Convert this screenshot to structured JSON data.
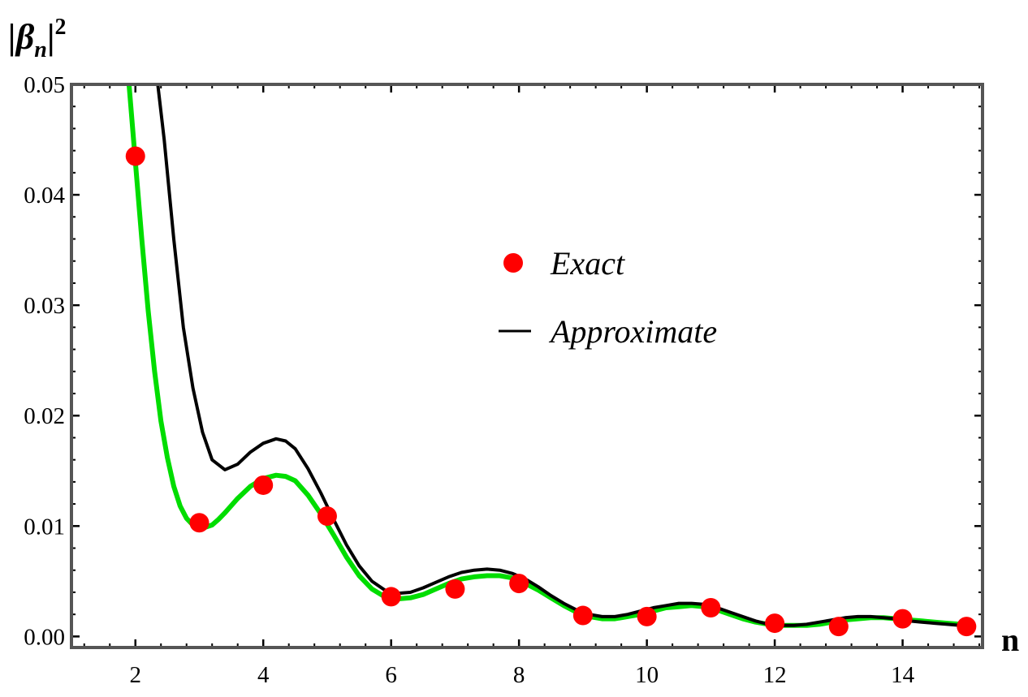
{
  "chart_data": {
    "type": "line",
    "title": "",
    "xlabel": "n",
    "ylabel": "|βn|²",
    "ylabel_parts": {
      "base": "|β",
      "sub": "n",
      "close": "|",
      "sup": "2"
    },
    "xlim": [
      1.0,
      15.25
    ],
    "ylim": [
      -0.001,
      0.05
    ],
    "xticks": [
      2,
      4,
      6,
      8,
      10,
      12,
      14
    ],
    "xtick_labels": [
      "2",
      "4",
      "6",
      "8",
      "10",
      "12",
      "14"
    ],
    "yticks": [
      0.0,
      0.01,
      0.02,
      0.03,
      0.04,
      0.05
    ],
    "ytick_labels": [
      "0.00",
      "0.01",
      "0.02",
      "0.03",
      "0.04",
      "0.05"
    ],
    "frame": true,
    "grid": false,
    "legend": {
      "placement": "center",
      "entries": [
        "Exact",
        "Approximate"
      ]
    },
    "series": [
      {
        "name": "Exact",
        "kind": "scatter",
        "color": "#ff0000",
        "x": [
          2,
          3,
          4,
          5,
          6,
          7,
          8,
          9,
          10,
          11,
          12,
          13,
          14,
          15
        ],
        "y": [
          0.0435,
          0.0103,
          0.0137,
          0.0109,
          0.0036,
          0.0043,
          0.0048,
          0.0019,
          0.0018,
          0.0026,
          0.0012,
          0.0009,
          0.0016,
          0.0009
        ]
      },
      {
        "name": "Approximate",
        "kind": "line",
        "color": "#000000",
        "x": [
          2.35,
          2.45,
          2.6,
          2.75,
          2.9,
          3.05,
          3.2,
          3.4,
          3.6,
          3.8,
          4.0,
          4.2,
          4.35,
          4.5,
          4.7,
          4.9,
          5.1,
          5.3,
          5.5,
          5.7,
          5.9,
          6.1,
          6.3,
          6.5,
          6.7,
          6.9,
          7.1,
          7.3,
          7.5,
          7.7,
          7.9,
          8.1,
          8.3,
          8.5,
          8.7,
          8.9,
          9.1,
          9.3,
          9.5,
          9.7,
          9.9,
          10.1,
          10.3,
          10.5,
          10.7,
          10.9,
          11.1,
          11.3,
          11.5,
          11.7,
          11.9,
          12.1,
          12.3,
          12.5,
          12.7,
          12.9,
          13.1,
          13.3,
          13.5,
          13.7,
          13.9,
          14.1,
          14.3,
          14.5,
          14.7,
          14.9,
          15.0
        ],
        "y": [
          0.05,
          0.045,
          0.036,
          0.028,
          0.0225,
          0.0185,
          0.016,
          0.0151,
          0.0156,
          0.0167,
          0.0175,
          0.0179,
          0.0177,
          0.017,
          0.0152,
          0.013,
          0.0106,
          0.0083,
          0.0064,
          0.005,
          0.0042,
          0.0039,
          0.004,
          0.0044,
          0.0049,
          0.0054,
          0.0058,
          0.006,
          0.0061,
          0.006,
          0.0057,
          0.0052,
          0.0045,
          0.0037,
          0.003,
          0.0024,
          0.002,
          0.0018,
          0.0018,
          0.002,
          0.0023,
          0.0026,
          0.0028,
          0.003,
          0.003,
          0.0029,
          0.0026,
          0.0022,
          0.0018,
          0.0014,
          0.0011,
          0.001,
          0.001,
          0.0011,
          0.0013,
          0.0015,
          0.0017,
          0.0018,
          0.0018,
          0.0017,
          0.0016,
          0.0014,
          0.0013,
          0.0012,
          0.0011,
          0.001,
          0.001
        ]
      },
      {
        "name": "",
        "kind": "line",
        "color": "#00dd00",
        "x": [
          1.9,
          2.0,
          2.1,
          2.2,
          2.3,
          2.4,
          2.5,
          2.6,
          2.7,
          2.8,
          2.9,
          3.0,
          3.1,
          3.2,
          3.3,
          3.4,
          3.6,
          3.8,
          4.0,
          4.2,
          4.35,
          4.5,
          4.7,
          4.9,
          5.1,
          5.3,
          5.5,
          5.7,
          5.9,
          6.1,
          6.3,
          6.5,
          6.7,
          6.9,
          7.1,
          7.3,
          7.5,
          7.7,
          7.9,
          8.1,
          8.3,
          8.5,
          8.7,
          8.9,
          9.1,
          9.3,
          9.5,
          9.7,
          9.9,
          10.1,
          10.3,
          10.5,
          10.7,
          10.9,
          11.1,
          11.3,
          11.5,
          11.7,
          11.9,
          12.1,
          12.3,
          12.5,
          12.7,
          12.9,
          13.1,
          13.3,
          13.5,
          13.7,
          13.9,
          14.1,
          14.3,
          14.5,
          14.7,
          14.9,
          15.0
        ],
        "y": [
          0.05,
          0.043,
          0.036,
          0.0295,
          0.024,
          0.0195,
          0.0162,
          0.0136,
          0.0118,
          0.0107,
          0.0101,
          0.0099,
          0.0099,
          0.0101,
          0.0106,
          0.0112,
          0.0125,
          0.0136,
          0.0143,
          0.0146,
          0.0145,
          0.0141,
          0.0128,
          0.0111,
          0.0092,
          0.0072,
          0.0055,
          0.0043,
          0.0036,
          0.0034,
          0.0035,
          0.0038,
          0.0043,
          0.0048,
          0.0052,
          0.0054,
          0.0055,
          0.0055,
          0.0053,
          0.0048,
          0.0042,
          0.0035,
          0.0028,
          0.0022,
          0.0018,
          0.0016,
          0.0016,
          0.0018,
          0.002,
          0.0023,
          0.0026,
          0.0027,
          0.0028,
          0.0027,
          0.0024,
          0.002,
          0.0016,
          0.0013,
          0.0011,
          0.001,
          0.001,
          0.001,
          0.0011,
          0.0013,
          0.0015,
          0.0016,
          0.0017,
          0.0017,
          0.0016,
          0.0015,
          0.0014,
          0.0013,
          0.0012,
          0.0011,
          0.0011
        ]
      }
    ]
  }
}
